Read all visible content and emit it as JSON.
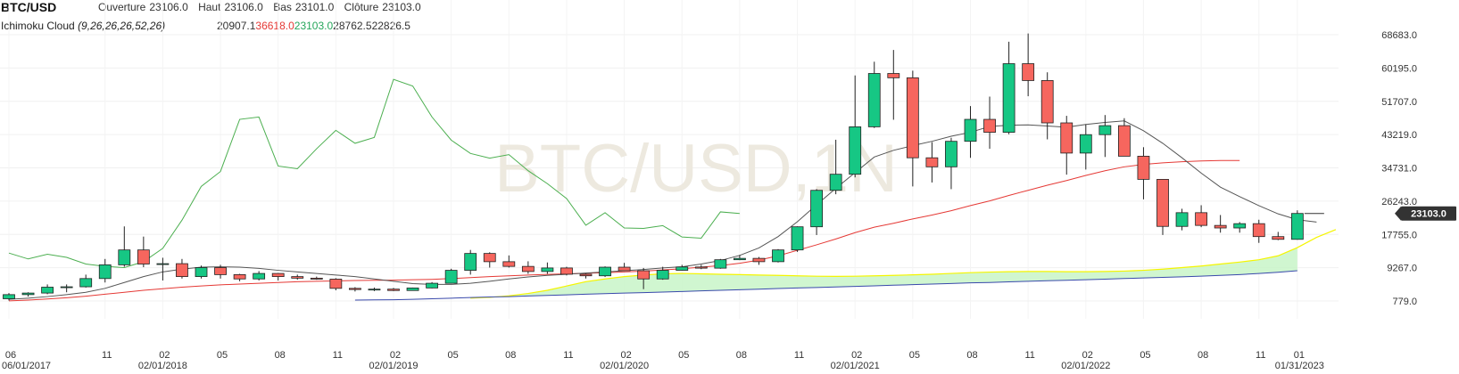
{
  "header": {
    "symbol": "BTC/USD",
    "open_label": "Ouverture",
    "open_value": "23106.0",
    "high_label": "Haut",
    "high_value": "23106.0",
    "low_label": "Bas",
    "low_value": "23101.0",
    "close_label": "Clôture",
    "close_value": "23103.0",
    "indicator_name": "Ichimoku Cloud",
    "indicator_params": "(9,26,26,26,52,26)",
    "ichimoku_values": [
      {
        "text": "20907.1",
        "color": "#333333"
      },
      {
        "text": "36618.0",
        "color": "#e53935"
      },
      {
        "text": "23103.0",
        "color": "#26a65b"
      },
      {
        "text": "28762.5",
        "color": "#333333"
      },
      {
        "text": "22826.5",
        "color": "#333333"
      }
    ]
  },
  "watermark": "BTC/USD,1N",
  "price_badge": "23103.0",
  "colors": {
    "up": "#16c784",
    "down": "#f6665e",
    "chikou": "#4caf50",
    "tenkan": "#555555",
    "kijun": "#e53935",
    "senkou_a": "#f5f500",
    "senkou_b": "#3949ab",
    "cloud": "#c8f5c8",
    "badge": "#333333"
  },
  "chart_data": {
    "type": "candlestick",
    "y_ticks": [
      "68683.0",
      "60195.0",
      "51707.0",
      "43219.0",
      "34731.0",
      "26243.0",
      "17755.0",
      "9267.0",
      "779.0"
    ],
    "y_range": [
      779,
      68683
    ],
    "x_ticks": [
      "06",
      "11",
      "02",
      "05",
      "08",
      "11",
      "02",
      "05",
      "08",
      "11",
      "02",
      "05",
      "08",
      "11",
      "02",
      "05",
      "08",
      "11",
      "02",
      "05",
      "08",
      "11",
      "01"
    ],
    "x_date_labels": [
      "06/01/2017",
      "02/01/2018",
      "02/01/2019",
      "02/01/2020",
      "02/01/2021",
      "02/01/2022",
      "01/31/2023"
    ],
    "candles": [
      {
        "o": 1350,
        "h": 2800,
        "l": 900,
        "c": 2400
      },
      {
        "o": 2400,
        "h": 3000,
        "l": 1900,
        "c": 2800
      },
      {
        "o": 2800,
        "h": 5000,
        "l": 2500,
        "c": 4300
      },
      {
        "o": 4300,
        "h": 5000,
        "l": 3000,
        "c": 4400
      },
      {
        "o": 4400,
        "h": 7500,
        "l": 4200,
        "c": 6500
      },
      {
        "o": 6500,
        "h": 11500,
        "l": 5500,
        "c": 10000
      },
      {
        "o": 10000,
        "h": 19800,
        "l": 9500,
        "c": 13800
      },
      {
        "o": 13800,
        "h": 17200,
        "l": 9400,
        "c": 10200
      },
      {
        "o": 10200,
        "h": 11800,
        "l": 6000,
        "c": 10300
      },
      {
        "o": 10300,
        "h": 11500,
        "l": 6500,
        "c": 7000
      },
      {
        "o": 7000,
        "h": 9800,
        "l": 6500,
        "c": 9300
      },
      {
        "o": 9300,
        "h": 10000,
        "l": 6500,
        "c": 7500
      },
      {
        "o": 7500,
        "h": 7700,
        "l": 5800,
        "c": 6400
      },
      {
        "o": 6400,
        "h": 8400,
        "l": 6000,
        "c": 7800
      },
      {
        "o": 7800,
        "h": 7900,
        "l": 6000,
        "c": 7000
      },
      {
        "o": 7000,
        "h": 7500,
        "l": 6200,
        "c": 6600
      },
      {
        "o": 6600,
        "h": 7000,
        "l": 6200,
        "c": 6350
      },
      {
        "o": 6350,
        "h": 6600,
        "l": 3500,
        "c": 4000
      },
      {
        "o": 4000,
        "h": 4300,
        "l": 3200,
        "c": 3700
      },
      {
        "o": 3700,
        "h": 4200,
        "l": 3300,
        "c": 3800
      },
      {
        "o": 3800,
        "h": 4100,
        "l": 3300,
        "c": 3450
      },
      {
        "o": 3450,
        "h": 4200,
        "l": 3400,
        "c": 4100
      },
      {
        "o": 4100,
        "h": 5600,
        "l": 4000,
        "c": 5300
      },
      {
        "o": 5300,
        "h": 9000,
        "l": 5300,
        "c": 8600
      },
      {
        "o": 8600,
        "h": 13800,
        "l": 7500,
        "c": 12900
      },
      {
        "o": 12900,
        "h": 13200,
        "l": 9300,
        "c": 10800
      },
      {
        "o": 10800,
        "h": 12400,
        "l": 9300,
        "c": 9600
      },
      {
        "o": 9600,
        "h": 10900,
        "l": 7700,
        "c": 8300
      },
      {
        "o": 8300,
        "h": 10600,
        "l": 7700,
        "c": 9200
      },
      {
        "o": 9200,
        "h": 9500,
        "l": 7300,
        "c": 7600
      },
      {
        "o": 7600,
        "h": 7800,
        "l": 6500,
        "c": 7200
      },
      {
        "o": 7200,
        "h": 9600,
        "l": 6900,
        "c": 9400
      },
      {
        "o": 9400,
        "h": 10500,
        "l": 8400,
        "c": 8500
      },
      {
        "o": 8500,
        "h": 9200,
        "l": 3800,
        "c": 6400
      },
      {
        "o": 6400,
        "h": 9500,
        "l": 6200,
        "c": 8600
      },
      {
        "o": 8600,
        "h": 10000,
        "l": 8500,
        "c": 9450
      },
      {
        "o": 9450,
        "h": 10000,
        "l": 8900,
        "c": 9150
      },
      {
        "o": 9150,
        "h": 11500,
        "l": 9000,
        "c": 11300
      },
      {
        "o": 11300,
        "h": 12500,
        "l": 11200,
        "c": 11650
      },
      {
        "o": 11650,
        "h": 12000,
        "l": 10000,
        "c": 10800
      },
      {
        "o": 10800,
        "h": 14000,
        "l": 10600,
        "c": 13800
      },
      {
        "o": 13800,
        "h": 19800,
        "l": 13300,
        "c": 19700
      },
      {
        "o": 19700,
        "h": 29300,
        "l": 17600,
        "c": 29000
      },
      {
        "o": 29000,
        "h": 41900,
        "l": 28000,
        "c": 33100
      },
      {
        "o": 33100,
        "h": 58300,
        "l": 32300,
        "c": 45200
      },
      {
        "o": 45200,
        "h": 61800,
        "l": 44900,
        "c": 58800
      },
      {
        "o": 58800,
        "h": 64800,
        "l": 47000,
        "c": 57700
      },
      {
        "o": 57700,
        "h": 59500,
        "l": 30000,
        "c": 37300
      },
      {
        "o": 37300,
        "h": 41300,
        "l": 31000,
        "c": 35000
      },
      {
        "o": 35000,
        "h": 42400,
        "l": 29300,
        "c": 41500
      },
      {
        "o": 41500,
        "h": 50500,
        "l": 37300,
        "c": 47100
      },
      {
        "o": 47100,
        "h": 52900,
        "l": 39600,
        "c": 43800
      },
      {
        "o": 43800,
        "h": 66900,
        "l": 43300,
        "c": 61300
      },
      {
        "o": 61300,
        "h": 69000,
        "l": 53000,
        "c": 57000
      },
      {
        "o": 57000,
        "h": 59100,
        "l": 42000,
        "c": 46200
      },
      {
        "o": 46200,
        "h": 48000,
        "l": 33000,
        "c": 38500
      },
      {
        "o": 38500,
        "h": 45800,
        "l": 34300,
        "c": 43200
      },
      {
        "o": 43200,
        "h": 48200,
        "l": 37500,
        "c": 45500
      },
      {
        "o": 45500,
        "h": 47400,
        "l": 37700,
        "c": 37700
      },
      {
        "o": 37700,
        "h": 40000,
        "l": 26700,
        "c": 31800
      },
      {
        "o": 31800,
        "h": 31900,
        "l": 17600,
        "c": 19800
      },
      {
        "o": 19800,
        "h": 24300,
        "l": 18800,
        "c": 23300
      },
      {
        "o": 23300,
        "h": 25200,
        "l": 19600,
        "c": 20050
      },
      {
        "o": 20050,
        "h": 22700,
        "l": 18200,
        "c": 19400
      },
      {
        "o": 19400,
        "h": 20900,
        "l": 18200,
        "c": 20500
      },
      {
        "o": 20500,
        "h": 21500,
        "l": 15600,
        "c": 17200
      },
      {
        "o": 17200,
        "h": 18400,
        "l": 16300,
        "c": 16500
      },
      {
        "o": 16500,
        "h": 23900,
        "l": 16400,
        "c": 23103
      }
    ],
    "tenkan": [
      1200,
      1500,
      1900,
      2400,
      3000,
      4000,
      5500,
      7000,
      8200,
      8900,
      9400,
      9500,
      9400,
      9100,
      8600,
      8200,
      7800,
      7400,
      7000,
      6400,
      5800,
      5200,
      5000,
      5000,
      5300,
      5800,
      6400,
      6900,
      7300,
      7600,
      7900,
      8200,
      8500,
      8800,
      9200,
      9500,
      10200,
      11100,
      12400,
      14300,
      17200,
      21000,
      25300,
      29500,
      33500,
      37500,
      39200,
      40400,
      41500,
      42800,
      43800,
      45300,
      45600,
      45700,
      45400,
      45100,
      45800,
      46300,
      46700,
      44200,
      41000,
      37300,
      33400,
      29800,
      27400,
      25100,
      23000,
      21500,
      20907
    ],
    "kijun": [
      800,
      1000,
      1300,
      1600,
      2000,
      2500,
      3000,
      3500,
      3900,
      4300,
      4600,
      4900,
      5100,
      5300,
      5500,
      5700,
      5800,
      5900,
      6000,
      6050,
      6100,
      6200,
      6300,
      6500,
      6750,
      7000,
      7200,
      7400,
      7550,
      7700,
      7850,
      8000,
      8200,
      8400,
      8700,
      9000,
      9400,
      9800,
      10400,
      11200,
      12300,
      13700,
      15100,
      16600,
      18200,
      19600,
      20600,
      21700,
      22700,
      23800,
      25100,
      26300,
      27700,
      29000,
      30300,
      31500,
      32800,
      34000,
      35000,
      35600,
      36000,
      36300,
      36500,
      36600,
      36618
    ],
    "chikou": [
      13000,
      11500,
      12700,
      11900,
      10200,
      9600,
      9300,
      10800,
      14200,
      21400,
      30000,
      33800,
      47100,
      47700,
      35200,
      34500,
      39600,
      44300,
      41000,
      42500,
      57300,
      55600,
      47700,
      41800,
      38400,
      37200,
      38100,
      34000,
      30700,
      26900,
      20100,
      23300,
      19400,
      19300,
      20000,
      17100,
      16800,
      23500,
      23103
    ],
    "senkou_a": [
      null,
      null,
      null,
      null,
      null,
      null,
      null,
      null,
      null,
      null,
      null,
      null,
      null,
      null,
      null,
      null,
      null,
      null,
      null,
      null,
      null,
      null,
      null,
      null,
      1500,
      1700,
      2100,
      2700,
      3500,
      4600,
      5700,
      6400,
      7000,
      7400,
      7700,
      7800,
      7700,
      7600,
      7500,
      7400,
      7300,
      7200,
      7100,
      7050,
      7100,
      7200,
      7300,
      7450,
      7600,
      7800,
      8000,
      8150,
      8250,
      8300,
      8300,
      8250,
      8250,
      8300,
      8400,
      8600,
      8900,
      9300,
      9700,
      10200,
      10700,
      11300,
      12300,
      14400,
      17000,
      19000
    ],
    "senkou_b": [
      null,
      null,
      null,
      null,
      null,
      null,
      null,
      null,
      null,
      null,
      null,
      null,
      null,
      null,
      null,
      null,
      null,
      null,
      1000,
      1050,
      1100,
      1200,
      1350,
      1500,
      1650,
      1800,
      1900,
      2050,
      2200,
      2350,
      2500,
      2650,
      2800,
      2900,
      3050,
      3200,
      3350,
      3500,
      3650,
      3800,
      3950,
      4100,
      4200,
      4350,
      4500,
      4650,
      4800,
      4950,
      5100,
      5250,
      5400,
      5500,
      5650,
      5800,
      5950,
      6050,
      6200,
      6350,
      6500,
      6650,
      6800,
      6950,
      7100,
      7300,
      7500,
      7800,
      8100,
      8500
    ]
  }
}
